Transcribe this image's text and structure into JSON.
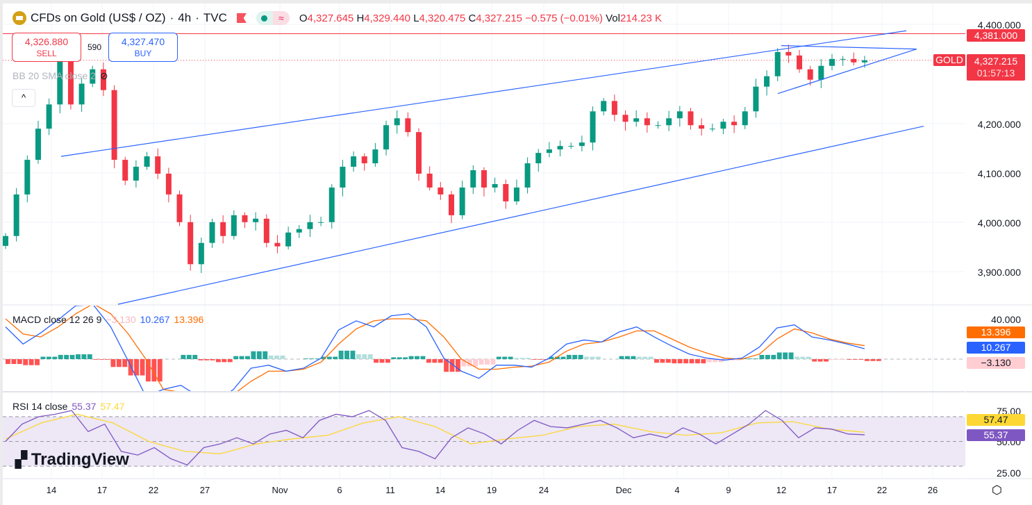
{
  "header": {
    "symbol": "CFDs on Gold (US$ / OZ)",
    "interval": "4h",
    "source": "TVC",
    "open_label": "O",
    "open": "4,327.645",
    "high_label": "H",
    "high": "4,329.440",
    "low_label": "L",
    "low": "4,320.475",
    "close_label": "C",
    "close": "4,327.215",
    "change": "−0.575 (−0.01%)",
    "vol_label": "Vol",
    "volume": "214.23 K",
    "wave_icon": "≈"
  },
  "trade": {
    "sell_price": "4,326.880",
    "sell_label": "SELL",
    "buy_price": "4,327.470",
    "buy_label": "BUY",
    "spread": "590"
  },
  "indicators": {
    "bb": "BB 20 SMA close 2",
    "collapse_icon": "^",
    "macd_title": "MACD close 12 26 9",
    "macd_hist": "−3.130",
    "macd_value": "10.267",
    "macd_signal": "13.396",
    "rsi_title": "RSI 14 close",
    "rsi_value": "55.37",
    "rsi_ma": "57.47"
  },
  "price_axis": {
    "ticks": [
      "4,400.000",
      "4,200.000",
      "4,100.000",
      "4,000.000",
      "3,900.000"
    ],
    "high_line": "4,381.000",
    "symbol_tag": "GOLD",
    "last_price": "4,327.215",
    "countdown": "01:57:13"
  },
  "macd_axis": {
    "ticks": [
      "40.000"
    ],
    "signal": "13.396",
    "macd": "10.267",
    "hist": "−3.130"
  },
  "rsi_axis": {
    "ticks": [
      "75.00",
      "50.00",
      "25.00"
    ],
    "ma": "57.47",
    "rsi": "55.37"
  },
  "time_axis": [
    "14",
    "17",
    "22",
    "27",
    "Nov",
    "6",
    "11",
    "14",
    "19",
    "24",
    "Dec",
    "4",
    "9",
    "12",
    "17",
    "22",
    "26"
  ],
  "watermark": "TradingView",
  "colors": {
    "up": "#089981",
    "down": "#f23645",
    "trendline": "#2962ff",
    "macd": "#2962ff",
    "signal": "#ff6d00",
    "rsi": "#7e57c2",
    "rsi_ma": "#fdd835",
    "rsi_band": "#ede7f6"
  },
  "chart_data": {
    "type": "candlestick",
    "symbol": "GOLD",
    "ylim": [
      3860,
      4420
    ],
    "closes": [
      3972,
      4056,
      4126,
      4189,
      4238,
      4337,
      4238,
      4280,
      4309,
      4267,
      4126,
      4084,
      4112,
      4133,
      4098,
      4056,
      4000,
      3915,
      3958,
      4000,
      3972,
      4014,
      4000,
      4007,
      3958,
      3951,
      3979,
      3986,
      4000,
      4000,
      4070,
      4112,
      4133,
      4119,
      4147,
      4196,
      4210,
      4182,
      4098,
      4070,
      4056,
      4014,
      4070,
      4105,
      4070,
      4077,
      4042,
      4070,
      4119,
      4140,
      4147,
      4154,
      4154,
      4161,
      4224,
      4245,
      4217,
      4203,
      4210,
      4196,
      4196,
      4210,
      4224,
      4196,
      4189,
      4189,
      4203,
      4196,
      4224,
      4274,
      4295,
      4344,
      4337,
      4309,
      4288,
      4316,
      4330,
      4330,
      4323,
      4327.215
    ],
    "trendlines": [
      {
        "start_price": 4133,
        "end_price": 4387
      },
      {
        "start_price": 3834,
        "end_price": 4194
      },
      {
        "start_price": 4260,
        "end_price": 4350
      },
      {
        "start_price": 4357,
        "end_price": 4350
      }
    ],
    "horizontal_lines": [
      4381,
      4327.215
    ],
    "macd": {
      "ylim": [
        -45,
        60
      ],
      "macd": [
        32,
        15,
        26,
        39,
        53,
        54,
        32,
        -2,
        -37,
        -30,
        -26,
        -37,
        -43,
        -30,
        -9,
        -6,
        -12,
        -9,
        1,
        29,
        38,
        32,
        43,
        45,
        32,
        1,
        -12,
        -19,
        -6,
        -6,
        -8,
        1,
        15,
        19,
        17,
        27,
        32,
        22,
        13,
        5,
        1,
        -1,
        1,
        12,
        31,
        34,
        22,
        19,
        15,
        10.267
      ],
      "signal": [
        40,
        25,
        22,
        32,
        45,
        55,
        45,
        25,
        0,
        -30,
        -33,
        -35,
        -38,
        -35,
        -22,
        -12,
        -12,
        -10,
        -3,
        15,
        30,
        38,
        40,
        40,
        38,
        22,
        0,
        -10,
        -10,
        -8,
        -7,
        -3,
        8,
        15,
        17,
        22,
        28,
        28,
        20,
        12,
        6,
        1,
        0,
        5,
        20,
        30,
        26,
        20,
        16,
        13.396
      ]
    },
    "rsi": {
      "ylim": [
        20,
        80
      ],
      "levels": [
        70,
        50,
        30
      ],
      "rsi": [
        50,
        64,
        70,
        72,
        75,
        58,
        64,
        42,
        39,
        45,
        36,
        31,
        45,
        48,
        53,
        48,
        56,
        59,
        53,
        67,
        72,
        70,
        75,
        67,
        45,
        42,
        36,
        53,
        61,
        56,
        48,
        59,
        67,
        62,
        61,
        64,
        67,
        61,
        53,
        56,
        53,
        61,
        56,
        48,
        56,
        64,
        75,
        67,
        53,
        61,
        60,
        56,
        55.37
      ],
      "ma": [
        52,
        65,
        72,
        65,
        50,
        42,
        40,
        48,
        52,
        55,
        65,
        70,
        62,
        48,
        52,
        55,
        62,
        64,
        58,
        55,
        57,
        65,
        66,
        60,
        57.47
      ]
    }
  }
}
